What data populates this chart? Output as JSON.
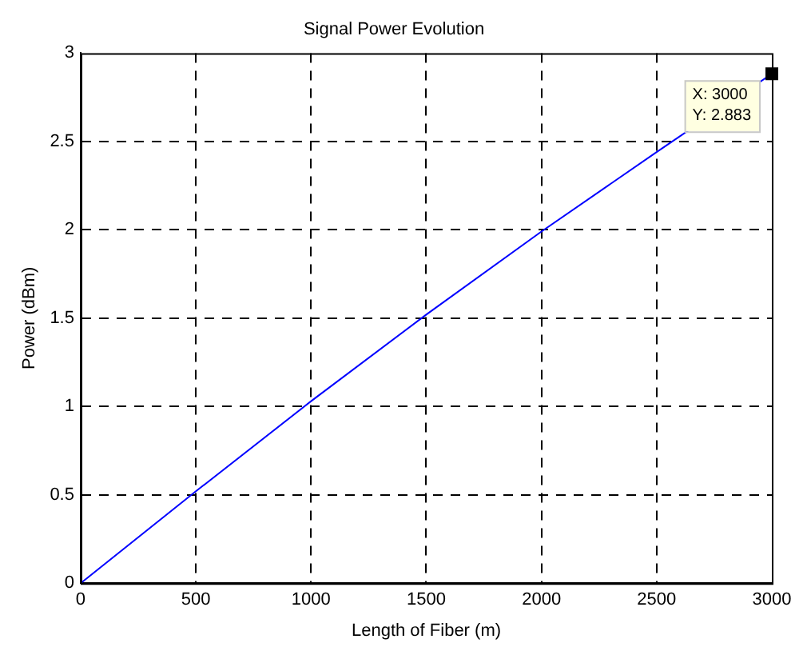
{
  "chart_data": {
    "type": "line",
    "title": "Signal Power Evolution",
    "xlabel": "Length of Fiber (m)",
    "ylabel": "Power (dBm)",
    "x": [
      0,
      500,
      1000,
      1500,
      2000,
      2500,
      3000
    ],
    "series": [
      {
        "color": "#0000ff",
        "values": [
          0,
          0.52,
          1.03,
          1.52,
          1.99,
          2.44,
          2.883
        ]
      }
    ],
    "xlim": [
      0,
      3000
    ],
    "xticks": [
      0,
      500,
      1000,
      1500,
      2000,
      2500,
      3000
    ],
    "ylim": [
      0,
      3
    ],
    "yticks": [
      0,
      0.5,
      1,
      1.5,
      2,
      2.5,
      3
    ],
    "grid": true,
    "legend": false,
    "marker": "none",
    "line_style": "solid",
    "annotations": [
      {
        "text": "X: 3000\nY: 2.883",
        "x": 3000,
        "y": 2.883
      }
    ]
  }
}
